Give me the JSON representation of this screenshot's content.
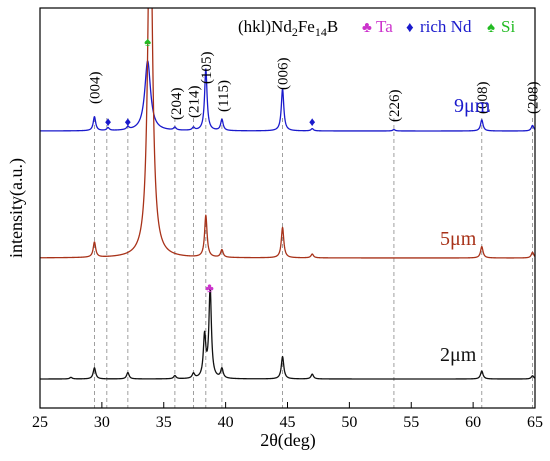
{
  "chart_data": {
    "type": "line",
    "title": "",
    "xlabel": "2θ(deg)",
    "ylabel": "intensity(a.u.)",
    "xlim": [
      25,
      65
    ],
    "xticks": [
      25,
      30,
      35,
      40,
      45,
      50,
      55,
      60,
      65
    ],
    "yticks_shown": false,
    "grid": false,
    "legend": {
      "placement": "top-right",
      "phase_label": "(hkl)Nd",
      "phase_sub1": "2",
      "phase_mid": "Fe",
      "phase_sub2": "14",
      "phase_end": "B",
      "entries": [
        {
          "symbol": "♣",
          "label": "Ta",
          "color": "#cc33cc"
        },
        {
          "symbol": "♦",
          "label": "rich Nd",
          "color": "#1a1acc"
        },
        {
          "symbol": "♠",
          "label": "Si",
          "color": "#22bb22"
        }
      ]
    },
    "reference_lines_2theta": [
      29.4,
      30.4,
      32.1,
      35.9,
      37.4,
      38.4,
      39.7,
      44.6,
      53.6,
      60.7,
      64.8
    ],
    "hkl_labels": [
      {
        "label": "(004)",
        "two_theta": 29.4
      },
      {
        "label": "(204)",
        "two_theta": 36.0
      },
      {
        "label": "(214)",
        "two_theta": 37.4
      },
      {
        "label": "(105)",
        "two_theta": 38.4
      },
      {
        "label": "(115)",
        "two_theta": 39.8
      },
      {
        "label": "(006)",
        "two_theta": 44.6
      },
      {
        "label": "(226)",
        "two_theta": 53.6
      },
      {
        "label": "(008)",
        "two_theta": 60.7
      },
      {
        "label": "(208)",
        "two_theta": 64.8
      }
    ],
    "phase_markers": [
      {
        "symbol": "♦",
        "phase": "rich Nd",
        "two_theta": 30.5,
        "series": "9μm",
        "color": "#1a1acc"
      },
      {
        "symbol": "♦",
        "phase": "rich Nd",
        "two_theta": 32.1,
        "series": "9μm",
        "color": "#1a1acc"
      },
      {
        "symbol": "♦",
        "phase": "rich Nd",
        "two_theta": 47.0,
        "series": "9μm",
        "color": "#1a1acc"
      },
      {
        "symbol": "♠",
        "phase": "Si",
        "two_theta": 33.7,
        "series": "9μm",
        "color": "#22bb22"
      },
      {
        "symbol": "♣",
        "phase": "Ta",
        "two_theta": 38.7,
        "series": "2μm",
        "color": "#cc33cc"
      }
    ],
    "series": [
      {
        "name": "9μm",
        "color": "#1a1acc",
        "baseline": 0.0,
        "peaks": [
          {
            "two_theta": 29.4,
            "height": 0.05
          },
          {
            "two_theta": 30.5,
            "height": 0.01
          },
          {
            "two_theta": 32.1,
            "height": 0.01
          },
          {
            "two_theta": 33.7,
            "height": 0.25,
            "width": 0.28
          },
          {
            "two_theta": 35.9,
            "height": 0.01
          },
          {
            "two_theta": 37.4,
            "height": 0.01
          },
          {
            "two_theta": 38.4,
            "height": 0.22
          },
          {
            "two_theta": 39.7,
            "height": 0.04
          },
          {
            "two_theta": 44.6,
            "height": 0.15
          },
          {
            "two_theta": 47.0,
            "height": 0.008
          },
          {
            "two_theta": 53.6,
            "height": 0.005
          },
          {
            "two_theta": 60.7,
            "height": 0.04
          },
          {
            "two_theta": 64.8,
            "height": 0.02
          }
        ]
      },
      {
        "name": "5μm",
        "color": "#a83219",
        "baseline": 0.0,
        "peaks": [
          {
            "two_theta": 29.4,
            "height": 0.04
          },
          {
            "two_theta": 33.9,
            "height": 1.0,
            "width": 0.22
          },
          {
            "two_theta": 38.4,
            "height": 0.11
          },
          {
            "two_theta": 39.7,
            "height": 0.02
          },
          {
            "two_theta": 44.6,
            "height": 0.08
          },
          {
            "two_theta": 47.0,
            "height": 0.01
          },
          {
            "two_theta": 60.7,
            "height": 0.03
          },
          {
            "two_theta": 64.8,
            "height": 0.015
          }
        ]
      },
      {
        "name": "2μm",
        "color": "#111111",
        "baseline": 0.0,
        "peaks": [
          {
            "two_theta": 27.5,
            "height": 0.005
          },
          {
            "two_theta": 29.4,
            "height": 0.035
          },
          {
            "two_theta": 32.1,
            "height": 0.02
          },
          {
            "two_theta": 35.9,
            "height": 0.01
          },
          {
            "two_theta": 37.4,
            "height": 0.015
          },
          {
            "two_theta": 38.3,
            "height": 0.13
          },
          {
            "two_theta": 38.75,
            "height": 0.28
          },
          {
            "two_theta": 39.7,
            "height": 0.03
          },
          {
            "two_theta": 44.6,
            "height": 0.07
          },
          {
            "two_theta": 47.0,
            "height": 0.015
          },
          {
            "two_theta": 60.7,
            "height": 0.025
          },
          {
            "two_theta": 64.8,
            "height": 0.01
          }
        ]
      }
    ]
  }
}
